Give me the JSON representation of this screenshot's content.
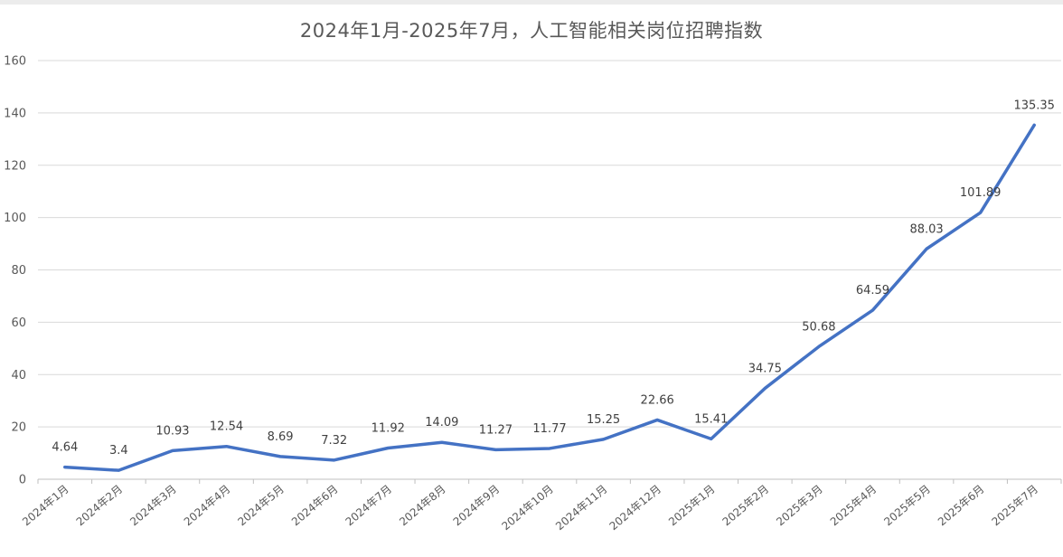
{
  "chart_data": {
    "type": "line",
    "title": "2024年1月-2025年7月，人工智能相关岗位招聘指数",
    "xlabel": "",
    "ylabel": "",
    "categories": [
      "2024年1月",
      "2024年2月",
      "2024年3月",
      "2024年4月",
      "2024年5月",
      "2024年6月",
      "2024年7月",
      "2024年8月",
      "2024年9月",
      "2024年10月",
      "2024年11月",
      "2024年12月",
      "2025年1月",
      "2025年2月",
      "2025年3月",
      "2025年4月",
      "2025年5月",
      "2025年6月",
      "2025年7月"
    ],
    "series": [
      {
        "values": [
          4.64,
          3.4,
          10.93,
          12.54,
          8.69,
          7.32,
          11.92,
          14.09,
          11.27,
          11.77,
          15.25,
          22.66,
          15.41,
          34.75,
          50.68,
          64.59,
          88.03,
          101.89,
          135.35
        ],
        "color": "#4472c4"
      }
    ],
    "ylim": [
      0,
      160
    ],
    "yticks": [
      0,
      20,
      40,
      60,
      80,
      100,
      120,
      140,
      160
    ],
    "grid": true,
    "data_labels": true
  }
}
